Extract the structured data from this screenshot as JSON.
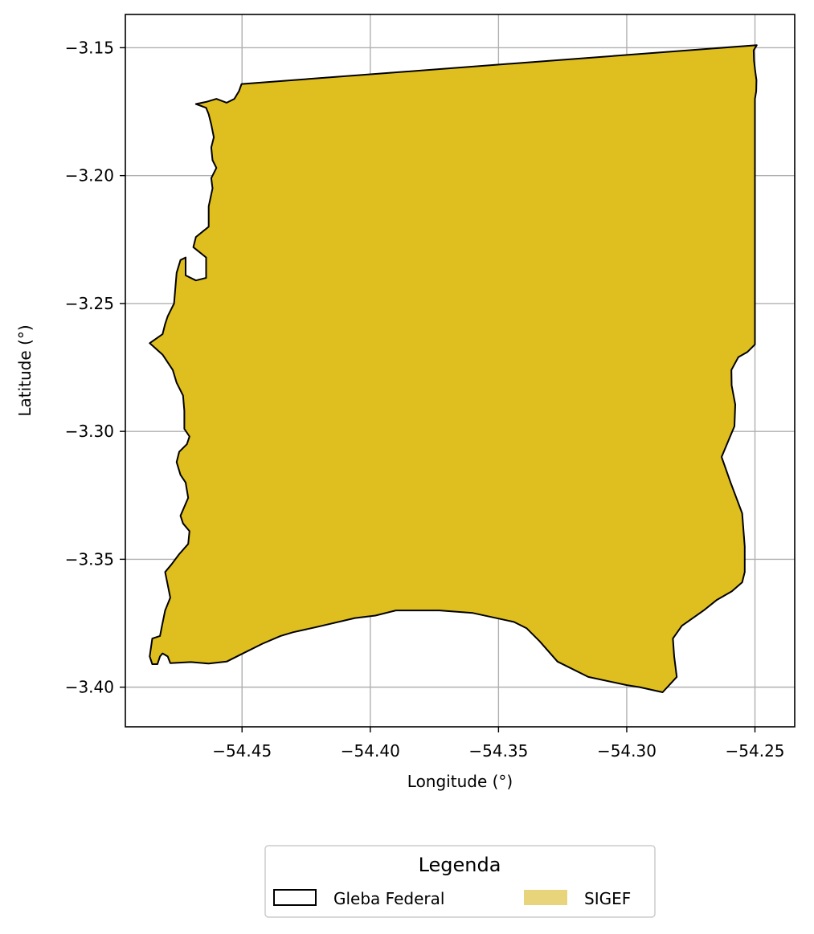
{
  "chart_data": {
    "type": "map",
    "xlabel": "Longitude (°)",
    "ylabel": "Latitude (°)",
    "xlim": [
      -54.4955,
      -54.2345
    ],
    "ylim": [
      -3.4155,
      -3.137
    ],
    "grid": true,
    "x_ticks": [
      {
        "value": -54.45,
        "label": "−54.45"
      },
      {
        "value": -54.4,
        "label": "−54.40"
      },
      {
        "value": -54.35,
        "label": "−54.35"
      },
      {
        "value": -54.3,
        "label": "−54.30"
      },
      {
        "value": -54.25,
        "label": "−54.25"
      }
    ],
    "y_ticks": [
      {
        "value": -3.15,
        "label": "−3.15"
      },
      {
        "value": -3.2,
        "label": "−3.20"
      },
      {
        "value": -3.25,
        "label": "−3.25"
      },
      {
        "value": -3.3,
        "label": "−3.30"
      },
      {
        "value": -3.35,
        "label": "−3.35"
      },
      {
        "value": -3.4,
        "label": "−3.40"
      }
    ],
    "legend": {
      "title": "Legenda",
      "placement": "bottom-center",
      "entries": [
        {
          "label": "Gleba Federal",
          "fill": "none",
          "edge": "#000000"
        },
        {
          "label": "SIGEF",
          "fill": "#e8d47a",
          "edge": "none"
        }
      ]
    },
    "layers": [
      {
        "name": "SIGEF",
        "fill": "#dfbe20",
        "edge": "#000000",
        "polygon": [
          [
            -54.4502,
            -3.1642
          ],
          [
            -54.2493,
            -3.149
          ],
          [
            -54.2505,
            -3.151
          ],
          [
            -54.2504,
            -3.155
          ],
          [
            -54.2499,
            -3.159
          ],
          [
            -54.2494,
            -3.1627
          ],
          [
            -54.2495,
            -3.167
          ],
          [
            -54.25,
            -3.17
          ],
          [
            -54.25,
            -3.266
          ],
          [
            -54.253,
            -3.269
          ],
          [
            -54.2565,
            -3.271
          ],
          [
            -54.2592,
            -3.276
          ],
          [
            -54.2591,
            -3.282
          ],
          [
            -54.2577,
            -3.2895
          ],
          [
            -54.258,
            -3.298
          ],
          [
            -54.263,
            -3.31
          ],
          [
            -54.2595,
            -3.32
          ],
          [
            -54.255,
            -3.332
          ],
          [
            -54.254,
            -3.345
          ],
          [
            -54.254,
            -3.355
          ],
          [
            -54.255,
            -3.359
          ],
          [
            -54.259,
            -3.3625
          ],
          [
            -54.265,
            -3.366
          ],
          [
            -54.27,
            -3.37
          ],
          [
            -54.2785,
            -3.376
          ],
          [
            -54.282,
            -3.381
          ],
          [
            -54.2815,
            -3.388
          ],
          [
            -54.2805,
            -3.396
          ],
          [
            -54.286,
            -3.402
          ],
          [
            -54.295,
            -3.4
          ],
          [
            -54.3,
            -3.3992
          ],
          [
            -54.315,
            -3.396
          ],
          [
            -54.327,
            -3.39
          ],
          [
            -54.334,
            -3.382
          ],
          [
            -54.339,
            -3.377
          ],
          [
            -54.344,
            -3.3745
          ],
          [
            -54.36,
            -3.371
          ],
          [
            -54.373,
            -3.37
          ],
          [
            -54.38,
            -3.37
          ],
          [
            -54.39,
            -3.37
          ],
          [
            -54.398,
            -3.372
          ],
          [
            -54.406,
            -3.373
          ],
          [
            -54.421,
            -3.3765
          ],
          [
            -54.43,
            -3.3785
          ],
          [
            -54.435,
            -3.38
          ],
          [
            -54.442,
            -3.383
          ],
          [
            -54.45,
            -3.387
          ],
          [
            -54.456,
            -3.39
          ],
          [
            -54.463,
            -3.3908
          ],
          [
            -54.47,
            -3.3902
          ],
          [
            -54.478,
            -3.3906
          ],
          [
            -54.479,
            -3.388
          ],
          [
            -54.481,
            -3.3868
          ],
          [
            -54.482,
            -3.388
          ],
          [
            -54.483,
            -3.391
          ],
          [
            -54.485,
            -3.391
          ],
          [
            -54.486,
            -3.388
          ],
          [
            -54.485,
            -3.381
          ],
          [
            -54.482,
            -3.38
          ],
          [
            -54.4812,
            -3.376
          ],
          [
            -54.48,
            -3.37
          ],
          [
            -54.478,
            -3.365
          ],
          [
            -54.479,
            -3.36
          ],
          [
            -54.48,
            -3.355
          ],
          [
            -54.4775,
            -3.352
          ],
          [
            -54.4745,
            -3.348
          ],
          [
            -54.471,
            -3.344
          ],
          [
            -54.4705,
            -3.339
          ],
          [
            -54.473,
            -3.336
          ],
          [
            -54.474,
            -3.333
          ],
          [
            -54.471,
            -3.326
          ],
          [
            -54.472,
            -3.32
          ],
          [
            -54.474,
            -3.317
          ],
          [
            -54.4755,
            -3.312
          ],
          [
            -54.4745,
            -3.308
          ],
          [
            -54.4715,
            -3.305
          ],
          [
            -54.4705,
            -3.302
          ],
          [
            -54.4725,
            -3.299
          ],
          [
            -54.4725,
            -3.292
          ],
          [
            -54.473,
            -3.286
          ],
          [
            -54.4755,
            -3.281
          ],
          [
            -54.477,
            -3.276
          ],
          [
            -54.481,
            -3.27
          ],
          [
            -54.486,
            -3.2655
          ],
          [
            -54.481,
            -3.262
          ],
          [
            -54.48,
            -3.258
          ],
          [
            -54.479,
            -3.255
          ],
          [
            -54.4765,
            -3.25
          ],
          [
            -54.476,
            -3.244
          ],
          [
            -54.4755,
            -3.238
          ],
          [
            -54.474,
            -3.233
          ],
          [
            -54.472,
            -3.232
          ],
          [
            -54.472,
            -3.239
          ],
          [
            -54.468,
            -3.241
          ],
          [
            -54.464,
            -3.24
          ],
          [
            -54.464,
            -3.232
          ],
          [
            -54.469,
            -3.228
          ],
          [
            -54.468,
            -3.224
          ],
          [
            -54.463,
            -3.22
          ],
          [
            -54.463,
            -3.212
          ],
          [
            -54.4615,
            -3.205
          ],
          [
            -54.462,
            -3.201
          ],
          [
            -54.46,
            -3.197
          ],
          [
            -54.4615,
            -3.194
          ],
          [
            -54.462,
            -3.189
          ],
          [
            -54.461,
            -3.185
          ],
          [
            -54.462,
            -3.18
          ],
          [
            -54.463,
            -3.176
          ],
          [
            -54.464,
            -3.1735
          ],
          [
            -54.468,
            -3.172
          ],
          [
            -54.464,
            -3.1712
          ],
          [
            -54.46,
            -3.17
          ],
          [
            -54.456,
            -3.1715
          ],
          [
            -54.453,
            -3.17
          ],
          [
            -54.4512,
            -3.167
          ]
        ]
      },
      {
        "name": "Gleba Federal",
        "fill": "none",
        "edge": "#000000"
      }
    ]
  }
}
